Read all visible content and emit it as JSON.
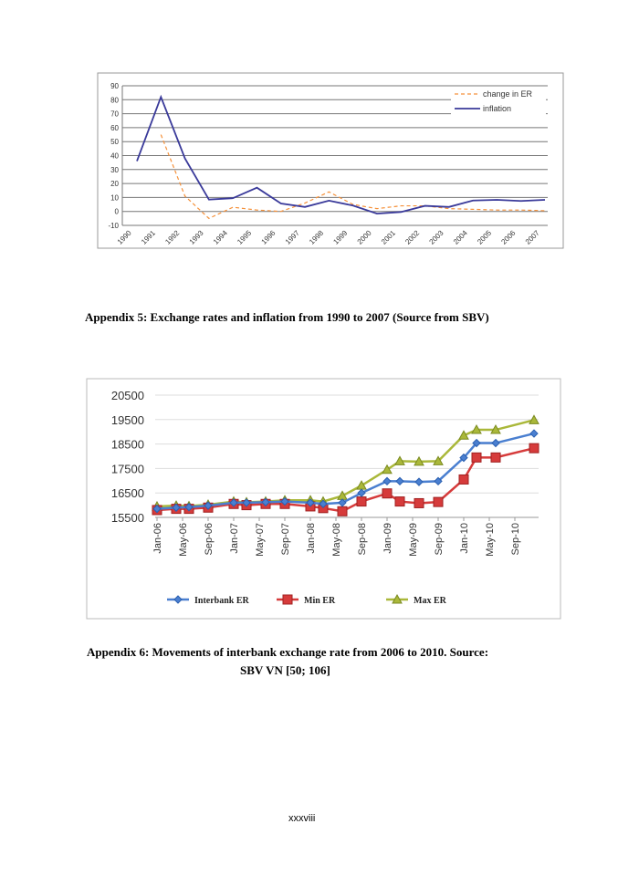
{
  "chart_data": [
    {
      "type": "line",
      "categories": [
        "1990",
        "1991",
        "1992",
        "1993",
        "1994",
        "1995",
        "1996",
        "1997",
        "1998",
        "1999",
        "2000",
        "2001",
        "2002",
        "2003",
        "2004",
        "2005",
        "2006",
        "2007"
      ],
      "ylim": [
        -10,
        90
      ],
      "yticks": [
        -10,
        0,
        10,
        20,
        30,
        40,
        50,
        60,
        70,
        80,
        90
      ],
      "grid": true,
      "legend": "top-right",
      "series": [
        {
          "name": "change in ER",
          "color": "#f5913a",
          "style": "dashed",
          "values": [
            null,
            55,
            11,
            -5,
            3,
            1,
            0,
            6,
            14,
            5,
            2,
            4,
            4,
            2,
            1.5,
            1,
            1,
            0.5
          ]
        },
        {
          "name": "inflation",
          "color": "#3a3a9a",
          "style": "solid",
          "values": [
            36,
            82,
            38,
            8.5,
            9.5,
            17,
            5.7,
            3.2,
            7.7,
            4.2,
            -1.6,
            -0.4,
            4,
            3.2,
            7.8,
            8.3,
            7.5,
            8.3
          ]
        }
      ]
    },
    {
      "type": "line",
      "x": [
        "2006-01",
        "2006-04",
        "2006-06",
        "2006-09",
        "2007-01",
        "2007-03",
        "2007-06",
        "2007-09",
        "2008-01",
        "2008-03",
        "2008-06",
        "2008-09",
        "2009-01",
        "2009-03",
        "2009-06",
        "2009-09",
        "2010-01",
        "2010-03",
        "2010-06",
        "2010-12"
      ],
      "xticks": [
        "Jan-06",
        "May-06",
        "Sep-06",
        "Jan-07",
        "May-07",
        "Sep-07",
        "Jan-08",
        "May-08",
        "Sep-08",
        "Jan-09",
        "May-09",
        "Sep-09",
        "Jan-10",
        "May-10",
        "Sep-10"
      ],
      "ylim": [
        15500,
        20500
      ],
      "yticks": [
        15500,
        16500,
        17500,
        18500,
        19500,
        20500
      ],
      "grid": true,
      "legend": "bottom",
      "series": [
        {
          "name": "Interbank ER",
          "color": "#4a7fd0",
          "marker": "diamond",
          "values": [
            15850,
            15900,
            15920,
            15980,
            16100,
            16100,
            16120,
            16150,
            16100,
            16050,
            16100,
            16500,
            16980,
            16980,
            16950,
            16980,
            17940,
            18540,
            18540,
            18930
          ]
        },
        {
          "name": "Min ER",
          "color": "#d63b3b",
          "marker": "square",
          "values": [
            15800,
            15850,
            15850,
            15900,
            16050,
            16000,
            16050,
            16050,
            15950,
            15880,
            15750,
            16150,
            16480,
            16150,
            16080,
            16130,
            17050,
            17950,
            17950,
            18330
          ]
        },
        {
          "name": "Max ER",
          "color": "#aab83a",
          "marker": "triangle",
          "values": [
            15950,
            15980,
            15960,
            16020,
            16150,
            16120,
            16150,
            16200,
            16200,
            16150,
            16380,
            16800,
            17450,
            17800,
            17780,
            17800,
            18850,
            19080,
            19080,
            19480
          ]
        }
      ]
    }
  ],
  "captions": {
    "appendix5": "Appendix  5: Exchange rates and inflation  from  1990 to 2007 (Source from  SBV)",
    "appendix6_line1": "Appendix  6: Movements of interbank  exchange rate from 2006 to 2010. Source:",
    "appendix6_line2": "SBV VN [50;  106]"
  },
  "page_number": "xxxviii"
}
